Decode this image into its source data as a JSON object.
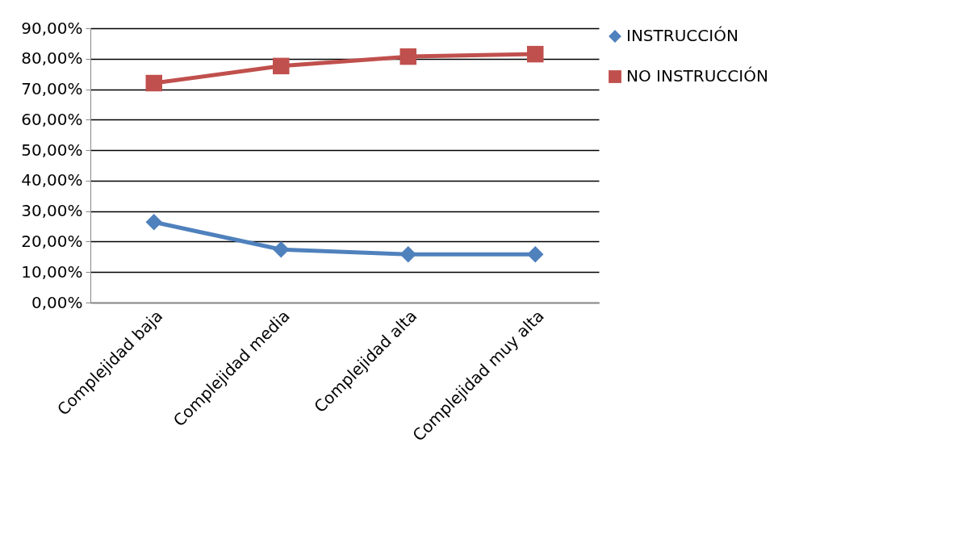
{
  "chart_data": {
    "type": "line",
    "categories": [
      "Complejidad baja",
      "Complejidad media",
      "Complejidad alta",
      "Complejidad muy alta"
    ],
    "series": [
      {
        "name": "INSTRUCCIÓN",
        "color": "#4f81bd",
        "marker": "diamond",
        "values": [
          26.4,
          17.4,
          15.8,
          15.8
        ]
      },
      {
        "name": "NO INSTRUCCIÓN",
        "color": "#c0504d",
        "marker": "square",
        "values": [
          72.0,
          77.6,
          80.7,
          81.5
        ]
      }
    ],
    "ylim": [
      0,
      90
    ],
    "yticks": [
      {
        "value": 0,
        "label": "0,00%"
      },
      {
        "value": 10,
        "label": "10,00%"
      },
      {
        "value": 20,
        "label": "20,00%"
      },
      {
        "value": 30,
        "label": "30,00%"
      },
      {
        "value": 40,
        "label": "40,00%"
      },
      {
        "value": 50,
        "label": "50,00%"
      },
      {
        "value": 60,
        "label": "60,00%"
      },
      {
        "value": 70,
        "label": "70,00%"
      },
      {
        "value": 80,
        "label": "80,00%"
      },
      {
        "value": 90,
        "label": "90,00%"
      }
    ],
    "grid": "y",
    "legend": "right",
    "line_style": "solid"
  }
}
